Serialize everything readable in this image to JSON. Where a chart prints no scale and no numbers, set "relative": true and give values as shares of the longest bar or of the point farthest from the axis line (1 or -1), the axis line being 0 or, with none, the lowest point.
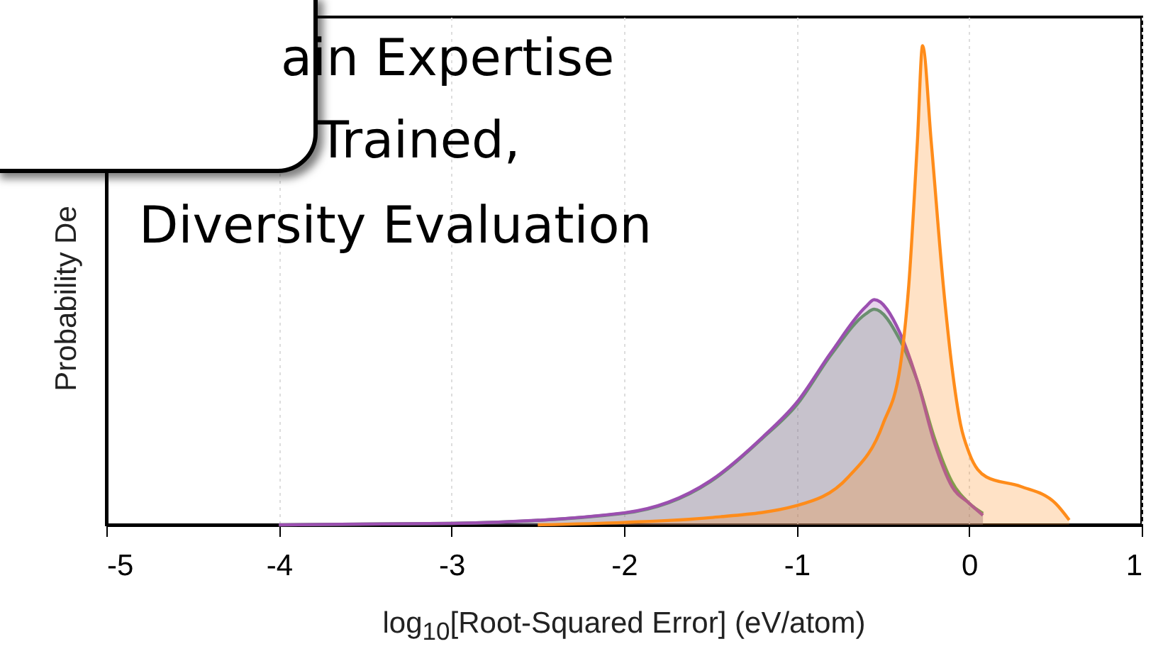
{
  "chart_data": {
    "type": "area",
    "relative": true,
    "xlabel": "log$_{10}$[Root-Squared Error] (eV/atom)",
    "ylabel": "Probability De",
    "annotations": [
      "ain Expertise",
      "Trained,",
      "Diversity Evaluation"
    ],
    "xlim": [
      -5,
      1
    ],
    "xticks": [
      -5,
      -4,
      -3,
      -2,
      -1,
      0,
      1
    ],
    "grid": "x",
    "marker": "none",
    "line_style": "solid",
    "series": [
      {
        "color": "#5aa55a",
        "x": [
          -4,
          -3,
          -2,
          -1.5,
          -1.2,
          -1,
          -0.8,
          -0.6,
          -0.55,
          -0.4,
          -0.3,
          -0.2,
          -0.1,
          0,
          0.08
        ],
        "values": [
          0,
          0.003,
          0.024,
          0.09,
          0.18,
          0.25,
          0.355,
          0.44,
          0.45,
          0.385,
          0.3,
          0.18,
          0.09,
          0.045,
          0.024
        ]
      },
      {
        "color": "#9b4fb0",
        "x": [
          -4,
          -3,
          -2,
          -1.5,
          -1.2,
          -1,
          -0.8,
          -0.6,
          -0.55,
          -0.4,
          -0.3,
          -0.2,
          -0.1,
          0,
          0.08
        ],
        "values": [
          0,
          0.003,
          0.025,
          0.092,
          0.182,
          0.255,
          0.36,
          0.455,
          0.47,
          0.4,
          0.3,
          0.17,
          0.08,
          0.045,
          0.02
        ]
      },
      {
        "color": "#ff8c1a",
        "x": [
          -2.5,
          -2,
          -1.5,
          -1,
          -0.7,
          -0.5,
          -0.4,
          -0.35,
          -0.3,
          -0.27,
          -0.22,
          -0.15,
          -0.1,
          -0.05,
          0,
          0.1,
          0.3,
          0.5,
          0.58
        ],
        "values": [
          0,
          0.005,
          0.015,
          0.04,
          0.1,
          0.21,
          0.33,
          0.5,
          0.8,
          1,
          0.8,
          0.5,
          0.33,
          0.21,
          0.15,
          0.1,
          0.08,
          0.045,
          0.01
        ]
      }
    ]
  }
}
